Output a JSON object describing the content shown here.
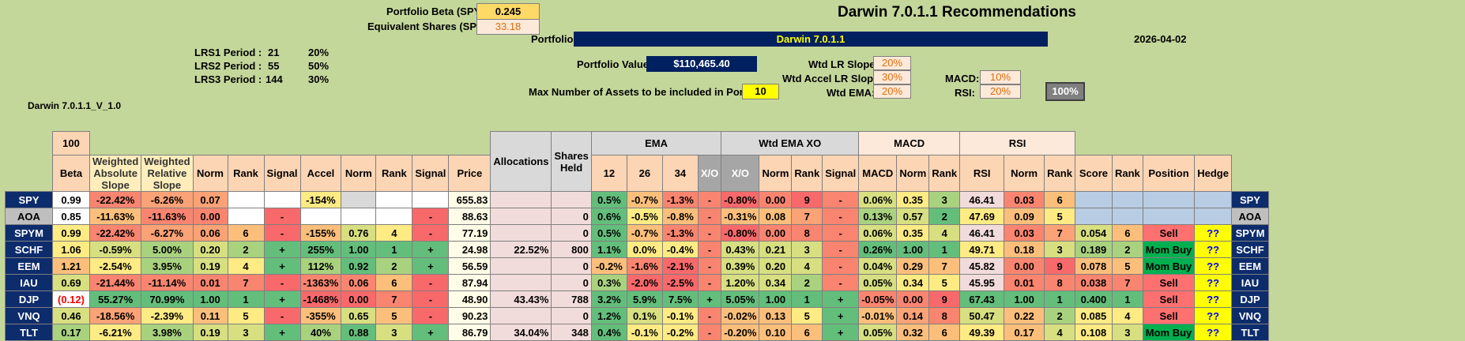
{
  "title": "Darwin 7.0.1.1 Recommendations",
  "portfolio_beta": {
    "label": "Portfolio Beta (SPY):",
    "value": "0.245"
  },
  "equiv_shares": {
    "label": "Equivalent Shares (SPY):",
    "value": "33.18"
  },
  "portfolio": {
    "label": "Portfolio:",
    "value": "Darwin 7.0.1.1"
  },
  "date": "2026-04-02",
  "lrs": [
    {
      "label": "LRS1 Period :",
      "period": "21",
      "pct": "20%"
    },
    {
      "label": "LRS2 Period :",
      "period": "55",
      "pct": "50%"
    },
    {
      "label": "LRS3 Period :",
      "period": "144",
      "pct": "30%"
    }
  ],
  "version": "Darwin 7.0.1.1_V_1.0",
  "portfolio_value": {
    "label": "Portfolio Value:",
    "value": "$110,465.40"
  },
  "max_assets": {
    "label": "Max Number of Assets to be included in Portfolio:",
    "value": "10"
  },
  "weights": {
    "wtd_lr_slope": {
      "label": "Wtd LR Slope:",
      "value": "20%"
    },
    "wtd_accel": {
      "label": "Wtd Accel LR Slope:",
      "value": "30%"
    },
    "wtd_ema": {
      "label": "Wtd EMA:",
      "value": "20%"
    },
    "macd": {
      "label": "MACD:",
      "value": "10%"
    },
    "rsi": {
      "label": "RSI:",
      "value": "20%"
    },
    "total": "100%"
  },
  "headers": {
    "beta_top": "100",
    "beta": "Beta",
    "was": "Weighted Absolute Slope",
    "wrs": "Weighted Relative Slope",
    "norm": "Norm",
    "rank": "Rank",
    "signal": "Signal",
    "accel": "Accel",
    "price": "Price",
    "allocations": "Allocations",
    "shares_held": "Shares Held",
    "ema": "EMA",
    "ema12": "12",
    "ema26": "26",
    "ema34": "34",
    "xo": "X/O",
    "wtd_ema_xo": "Wtd EMA XO",
    "macd": "MACD",
    "rsi": "RSI",
    "score": "Score",
    "position": "Position",
    "hedge": "Hedge"
  },
  "rows": [
    {
      "t": "SPY",
      "beta": "0.99",
      "was": "-22.42%",
      "wrs": "-6.26%",
      "n1": "0.07",
      "r1": "",
      "s1": "",
      "acc": "-154%",
      "n2": "",
      "r2": "",
      "s2": "",
      "price": "655.83",
      "alloc": "",
      "sh": "",
      "e12": "0.5%",
      "e26": "-0.7%",
      "e34": "-1.3%",
      "xo": "-",
      "wxo": "-0.80%",
      "n3": "0.00",
      "r3": "9",
      "s3": "-",
      "macd": "0.06%",
      "n4": "0.35",
      "r4": "3",
      "rsi": "46.41",
      "n5": "0.03",
      "r5": "6",
      "score": "",
      "rk": "",
      "pos": "",
      "hedge": ""
    },
    {
      "t": "AOA",
      "beta": "0.85",
      "was": "-11.63%",
      "wrs": "-11.63%",
      "n1": "0.00",
      "r1": "",
      "s1": "-",
      "acc": "",
      "n2": "",
      "r2": "",
      "s2": "-",
      "price": "88.63",
      "alloc": "",
      "sh": "0",
      "e12": "0.6%",
      "e26": "-0.5%",
      "e34": "-0.8%",
      "xo": "-",
      "wxo": "-0.31%",
      "n3": "0.08",
      "r3": "7",
      "s3": "-",
      "macd": "0.13%",
      "n4": "0.57",
      "r4": "2",
      "rsi": "47.69",
      "n5": "0.09",
      "r5": "5",
      "score": "",
      "rk": "",
      "pos": "",
      "hedge": ""
    },
    {
      "t": "SPYM",
      "beta": "0.99",
      "was": "-22.42%",
      "wrs": "-6.27%",
      "n1": "0.06",
      "r1": "6",
      "s1": "-",
      "acc": "-155%",
      "n2": "0.76",
      "r2": "4",
      "s2": "-",
      "price": "77.19",
      "alloc": "",
      "sh": "0",
      "e12": "0.5%",
      "e26": "-0.7%",
      "e34": "-1.3%",
      "xo": "-",
      "wxo": "-0.80%",
      "n3": "0.00",
      "r3": "8",
      "s3": "-",
      "macd": "0.06%",
      "n4": "0.35",
      "r4": "4",
      "rsi": "46.41",
      "n5": "0.03",
      "r5": "7",
      "score": "0.054",
      "rk": "6",
      "pos": "Sell",
      "hedge": "??"
    },
    {
      "t": "SCHF",
      "beta": "1.06",
      "was": "-0.59%",
      "wrs": "5.00%",
      "n1": "0.20",
      "r1": "2",
      "s1": "+",
      "acc": "255%",
      "n2": "1.00",
      "r2": "1",
      "s2": "+",
      "price": "24.98",
      "alloc": "22.52%",
      "sh": "800",
      "e12": "1.1%",
      "e26": "0.0%",
      "e34": "-0.4%",
      "xo": "-",
      "wxo": "0.43%",
      "n3": "0.21",
      "r3": "3",
      "s3": "-",
      "macd": "0.26%",
      "n4": "1.00",
      "r4": "1",
      "rsi": "49.71",
      "n5": "0.18",
      "r5": "3",
      "score": "0.189",
      "rk": "2",
      "pos": "Mom Buy",
      "hedge": "??"
    },
    {
      "t": "EEM",
      "beta": "1.21",
      "was": "-2.54%",
      "wrs": "3.95%",
      "n1": "0.19",
      "r1": "4",
      "s1": "+",
      "acc": "112%",
      "n2": "0.92",
      "r2": "2",
      "s2": "+",
      "price": "56.59",
      "alloc": "",
      "sh": "0",
      "e12": "-0.2%",
      "e26": "-1.6%",
      "e34": "-2.1%",
      "xo": "-",
      "wxo": "0.39%",
      "n3": "0.20",
      "r3": "4",
      "s3": "-",
      "macd": "0.04%",
      "n4": "0.29",
      "r4": "7",
      "rsi": "45.82",
      "n5": "0.00",
      "r5": "9",
      "score": "0.078",
      "rk": "5",
      "pos": "Mom Buy",
      "hedge": "??"
    },
    {
      "t": "IAU",
      "beta": "0.69",
      "was": "-21.44%",
      "wrs": "-11.14%",
      "n1": "0.01",
      "r1": "7",
      "s1": "-",
      "acc": "-1363%",
      "n2": "0.06",
      "r2": "6",
      "s2": "-",
      "price": "87.94",
      "alloc": "",
      "sh": "0",
      "e12": "0.3%",
      "e26": "-2.0%",
      "e34": "-2.5%",
      "xo": "-",
      "wxo": "1.20%",
      "n3": "0.34",
      "r3": "2",
      "s3": "-",
      "macd": "0.05%",
      "n4": "0.34",
      "r4": "5",
      "rsi": "45.95",
      "n5": "0.01",
      "r5": "8",
      "score": "0.038",
      "rk": "7",
      "pos": "Sell",
      "hedge": "??"
    },
    {
      "t": "DJP",
      "beta": "(0.12)",
      "was": "55.27%",
      "wrs": "70.99%",
      "n1": "1.00",
      "r1": "1",
      "s1": "+",
      "acc": "-1468%",
      "n2": "0.00",
      "r2": "7",
      "s2": "-",
      "price": "48.90",
      "alloc": "43.43%",
      "sh": "788",
      "e12": "3.2%",
      "e26": "5.9%",
      "e34": "7.5%",
      "xo": "+",
      "wxo": "5.05%",
      "n3": "1.00",
      "r3": "1",
      "s3": "+",
      "macd": "-0.05%",
      "n4": "0.00",
      "r4": "9",
      "rsi": "67.43",
      "n5": "1.00",
      "r5": "1",
      "score": "0.400",
      "rk": "1",
      "pos": "Sell",
      "hedge": "??"
    },
    {
      "t": "VNQ",
      "beta": "0.46",
      "was": "-18.56%",
      "wrs": "-2.39%",
      "n1": "0.11",
      "r1": "5",
      "s1": "-",
      "acc": "-355%",
      "n2": "0.65",
      "r2": "5",
      "s2": "-",
      "price": "90.23",
      "alloc": "",
      "sh": "0",
      "e12": "1.2%",
      "e26": "0.1%",
      "e34": "-0.1%",
      "xo": "-",
      "wxo": "-0.02%",
      "n3": "0.13",
      "r3": "5",
      "s3": "+",
      "macd": "-0.01%",
      "n4": "0.14",
      "r4": "8",
      "rsi": "50.47",
      "n5": "0.22",
      "r5": "2",
      "score": "0.085",
      "rk": "4",
      "pos": "Sell",
      "hedge": "??"
    },
    {
      "t": "TLT",
      "beta": "0.17",
      "was": "-6.21%",
      "wrs": "3.98%",
      "n1": "0.19",
      "r1": "3",
      "s1": "+",
      "acc": "40%",
      "n2": "0.88",
      "r2": "3",
      "s2": "+",
      "price": "86.79",
      "alloc": "34.04%",
      "sh": "348",
      "e12": "0.4%",
      "e26": "-0.1%",
      "e34": "-0.2%",
      "xo": "-",
      "wxo": "-0.20%",
      "n3": "0.10",
      "r3": "6",
      "s3": "+",
      "macd": "0.05%",
      "n4": "0.32",
      "r4": "6",
      "rsi": "49.39",
      "n5": "0.17",
      "r5": "4",
      "score": "0.108",
      "rk": "3",
      "pos": "Mom Buy",
      "hedge": "??"
    }
  ]
}
